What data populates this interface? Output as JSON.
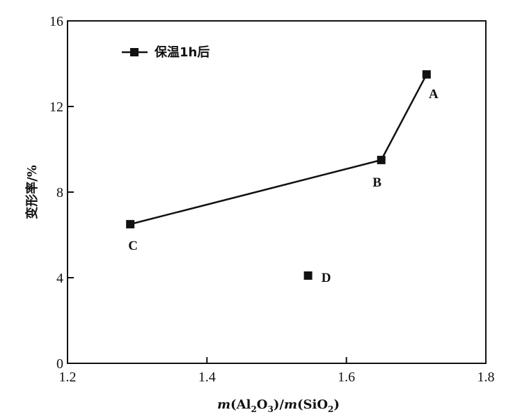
{
  "chart_data": {
    "type": "scatter",
    "title": "",
    "xlabel": "m(Al2O3)/m(SiO2)",
    "xlabel_parts": {
      "m1": "m",
      "mid1": "(Al",
      "sub1": "2",
      "mid2": "O",
      "sub2": "3",
      "mid3": ")/",
      "m2": "m",
      "mid4": "(SiO",
      "sub3": "2",
      "end": ")"
    },
    "ylabel": "变形率/%",
    "xlim": [
      1.2,
      1.8
    ],
    "ylim": [
      0,
      16
    ],
    "xticks": [
      1.2,
      1.4,
      1.6,
      1.8
    ],
    "xtick_labels": [
      "1.2",
      "1.4",
      "1.6",
      "1.8"
    ],
    "yticks": [
      0,
      4,
      8,
      12,
      16
    ],
    "ytick_labels": [
      "0",
      "4",
      "8",
      "12",
      "16"
    ],
    "grid": false,
    "legend_position": "top-left",
    "series": [
      {
        "name": "保温1h后",
        "connected": true,
        "points": [
          {
            "label": "C",
            "x": 1.29,
            "y": 6.5
          },
          {
            "label": "B",
            "x": 1.65,
            "y": 9.5
          },
          {
            "label": "A",
            "x": 1.715,
            "y": 13.5
          }
        ]
      },
      {
        "connected": false,
        "points": [
          {
            "label": "D",
            "x": 1.545,
            "y": 4.1
          }
        ]
      }
    ],
    "color": "#111111"
  }
}
